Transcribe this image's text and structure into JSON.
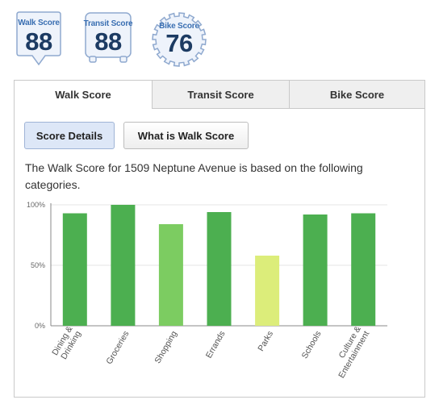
{
  "badges": [
    {
      "title": "Walk Score",
      "score": "88",
      "shape": "walk-pin"
    },
    {
      "title": "Transit Score",
      "score": "88",
      "shape": "bus"
    },
    {
      "title": "Bike Score",
      "score": "76",
      "shape": "gear"
    }
  ],
  "tabs": [
    {
      "label": "Walk Score",
      "active": true
    },
    {
      "label": "Transit Score",
      "active": false
    },
    {
      "label": "Bike Score",
      "active": false
    }
  ],
  "buttons": {
    "score_details": "Score Details",
    "what_is": "What is Walk Score"
  },
  "description": "The Walk Score for 1509 Neptune Avenue is based on the following categories.",
  "colors": {
    "high": "#4caf50",
    "mid": "#7ccc61",
    "low": "#dced7a"
  },
  "chart_data": {
    "type": "bar",
    "categories": [
      "Dining & Drinking",
      "Groceries",
      "Shopping",
      "Errands",
      "Parks",
      "Schools",
      "Culture & Entertainment"
    ],
    "category_lines": [
      [
        "Dining &",
        "Drinking"
      ],
      [
        "Groceries"
      ],
      [
        "Shopping"
      ],
      [
        "Errands"
      ],
      [
        "Parks"
      ],
      [
        "Schools"
      ],
      [
        "Culture &",
        "Entertainment"
      ]
    ],
    "values": [
      93,
      100,
      84,
      94,
      58,
      92,
      93
    ],
    "bar_colors": [
      "#4caf50",
      "#4caf50",
      "#7ccc61",
      "#4caf50",
      "#dced7a",
      "#4caf50",
      "#4caf50"
    ],
    "ylim": [
      0,
      100
    ],
    "yticks": [
      0,
      50,
      100
    ],
    "ytick_labels": [
      "0%",
      "50%",
      "100%"
    ],
    "title": "",
    "xlabel": "",
    "ylabel": ""
  }
}
